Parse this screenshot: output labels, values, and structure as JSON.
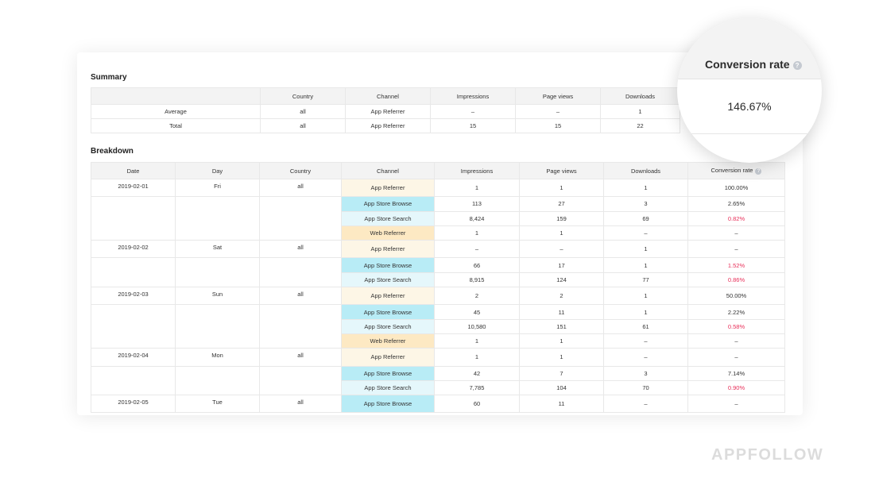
{
  "summary": {
    "title": "Summary",
    "headers": [
      "",
      "Country",
      "Channel",
      "Impressions",
      "Page views",
      "Downloads"
    ],
    "rows": [
      {
        "label": "Average",
        "country": "all",
        "channel": "App Referrer",
        "impressions": "–",
        "page_views": "–",
        "downloads": "1"
      },
      {
        "label": "Total",
        "country": "all",
        "channel": "App Referrer",
        "impressions": "15",
        "page_views": "15",
        "downloads": "22"
      }
    ]
  },
  "breakdown": {
    "title": "Breakdown",
    "headers": [
      "Date",
      "Day",
      "Country",
      "Channel",
      "Impressions",
      "Page views",
      "Downloads",
      "Conversion rate"
    ],
    "rows": [
      {
        "date": "2019-02-01",
        "day": "Fri",
        "country": "all",
        "channel": "App Referrer",
        "type": "ref",
        "impressions": "1",
        "page_views": "1",
        "downloads": "1",
        "conversion": "100.00%",
        "low": false
      },
      {
        "date": "",
        "day": "",
        "country": "",
        "channel": "App Store Browse",
        "type": "browse",
        "impressions": "113",
        "page_views": "27",
        "downloads": "3",
        "conversion": "2.65%",
        "low": false
      },
      {
        "date": "",
        "day": "",
        "country": "",
        "channel": "App Store Search",
        "type": "search",
        "impressions": "8,424",
        "page_views": "159",
        "downloads": "69",
        "conversion": "0.82%",
        "low": true
      },
      {
        "date": "",
        "day": "",
        "country": "",
        "channel": "Web Referrer",
        "type": "web",
        "impressions": "1",
        "page_views": "1",
        "downloads": "–",
        "conversion": "–",
        "low": false
      },
      {
        "date": "2019-02-02",
        "day": "Sat",
        "country": "all",
        "channel": "App Referrer",
        "type": "ref",
        "impressions": "–",
        "page_views": "–",
        "downloads": "1",
        "conversion": "–",
        "low": false
      },
      {
        "date": "",
        "day": "",
        "country": "",
        "channel": "App Store Browse",
        "type": "browse",
        "impressions": "66",
        "page_views": "17",
        "downloads": "1",
        "conversion": "1.52%",
        "low": true
      },
      {
        "date": "",
        "day": "",
        "country": "",
        "channel": "App Store Search",
        "type": "search",
        "impressions": "8,915",
        "page_views": "124",
        "downloads": "77",
        "conversion": "0.86%",
        "low": true
      },
      {
        "date": "2019-02-03",
        "day": "Sun",
        "country": "all",
        "channel": "App Referrer",
        "type": "ref",
        "impressions": "2",
        "page_views": "2",
        "downloads": "1",
        "conversion": "50.00%",
        "low": false
      },
      {
        "date": "",
        "day": "",
        "country": "",
        "channel": "App Store Browse",
        "type": "browse",
        "impressions": "45",
        "page_views": "11",
        "downloads": "1",
        "conversion": "2.22%",
        "low": false
      },
      {
        "date": "",
        "day": "",
        "country": "",
        "channel": "App Store Search",
        "type": "search",
        "impressions": "10,580",
        "page_views": "151",
        "downloads": "61",
        "conversion": "0.58%",
        "low": true
      },
      {
        "date": "",
        "day": "",
        "country": "",
        "channel": "Web Referrer",
        "type": "web",
        "impressions": "1",
        "page_views": "1",
        "downloads": "–",
        "conversion": "–",
        "low": false
      },
      {
        "date": "2019-02-04",
        "day": "Mon",
        "country": "all",
        "channel": "App Referrer",
        "type": "ref",
        "impressions": "1",
        "page_views": "1",
        "downloads": "–",
        "conversion": "–",
        "low": false
      },
      {
        "date": "",
        "day": "",
        "country": "",
        "channel": "App Store Browse",
        "type": "browse",
        "impressions": "42",
        "page_views": "7",
        "downloads": "3",
        "conversion": "7.14%",
        "low": false
      },
      {
        "date": "",
        "day": "",
        "country": "",
        "channel": "App Store Search",
        "type": "search",
        "impressions": "7,785",
        "page_views": "104",
        "downloads": "70",
        "conversion": "0.90%",
        "low": true
      },
      {
        "date": "2019-02-05",
        "day": "Tue",
        "country": "all",
        "channel": "App Store Browse",
        "type": "browse",
        "impressions": "60",
        "page_views": "11",
        "downloads": "–",
        "conversion": "–",
        "low": false
      }
    ]
  },
  "magnifier": {
    "title": "Conversion rate",
    "value": "146.67%",
    "help_icon": "question-circle-icon"
  },
  "logo": "APPFOLLOW",
  "colors": {
    "low_conversion": "#e8305a",
    "channel_app_referrer": "#fdf6e6",
    "channel_app_store_browse": "#b8ecf6",
    "channel_app_store_search": "#e5f7fb",
    "channel_web_referrer": "#fde9c3"
  }
}
